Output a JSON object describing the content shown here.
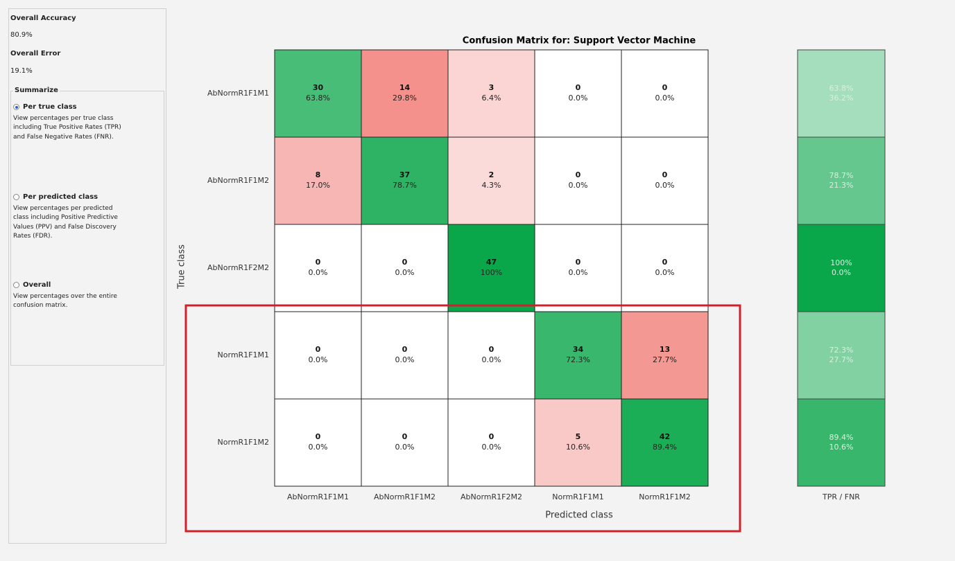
{
  "panel": {
    "accuracy_label": "Overall Accuracy",
    "accuracy": "80.9%",
    "error_label": "Overall Error",
    "error": "19.1%",
    "summarize_label": "Summarize",
    "options": [
      {
        "label": "Per true class",
        "selected": true,
        "description": [
          "View percentages per true class",
          "including True Positive Rates (TPR)",
          "and False Negative Rates (FNR)."
        ]
      },
      {
        "label": "Per predicted class",
        "selected": false,
        "description": [
          "View percentages per predicted",
          "class including Positive Predictive",
          "Values (PPV) and False Discovery",
          "Rates (FDR)."
        ]
      },
      {
        "label": "Overall",
        "selected": false,
        "description": [
          "View percentages over the entire",
          "confusion matrix."
        ]
      }
    ]
  },
  "matrix": {
    "title": "Confusion Matrix for: Support Vector Machine",
    "row_labels": [
      "AbNormR1F1M1",
      "AbNormR1F1M2",
      "AbNormR1F2M2",
      "NormR1F1M1",
      "NormR1F1M2"
    ],
    "col_labels": [
      "AbNormR1F1M1",
      "AbNormR1F1M2",
      "AbNormR1F2M2",
      "NormR1F1M1",
      "NormR1F1M2"
    ],
    "x_label": "Predicted class",
    "y_label": "True class",
    "cells": [
      [
        {
          "count": 30,
          "percent": "63.8%"
        },
        {
          "count": 14,
          "percent": "29.8%"
        },
        {
          "count": 3,
          "percent": "6.4%"
        },
        {
          "count": 0,
          "percent": "0.0%"
        },
        {
          "count": 0,
          "percent": "0.0%"
        }
      ],
      [
        {
          "count": 8,
          "percent": "17.0%"
        },
        {
          "count": 37,
          "percent": "78.7%"
        },
        {
          "count": 2,
          "percent": "4.3%"
        },
        {
          "count": 0,
          "percent": "0.0%"
        },
        {
          "count": 0,
          "percent": "0.0%"
        }
      ],
      [
        {
          "count": 0,
          "percent": "0.0%"
        },
        {
          "count": 0,
          "percent": "0.0%"
        },
        {
          "count": 47,
          "percent": "100%"
        },
        {
          "count": 0,
          "percent": "0.0%"
        },
        {
          "count": 0,
          "percent": "0.0%"
        }
      ],
      [
        {
          "count": 0,
          "percent": "0.0%"
        },
        {
          "count": 0,
          "percent": "0.0%"
        },
        {
          "count": 0,
          "percent": "0.0%"
        },
        {
          "count": 34,
          "percent": "72.3%"
        },
        {
          "count": 13,
          "percent": "27.7%"
        }
      ],
      [
        {
          "count": 0,
          "percent": "0.0%"
        },
        {
          "count": 0,
          "percent": "0.0%"
        },
        {
          "count": 0,
          "percent": "0.0%"
        },
        {
          "count": 5,
          "percent": "10.6%"
        },
        {
          "count": 42,
          "percent": "89.4%"
        }
      ]
    ],
    "summary_label": "TPR / FNR",
    "summary": [
      {
        "tpr": "63.8%",
        "fnr": "36.2%"
      },
      {
        "tpr": "78.7%",
        "fnr": "21.3%"
      },
      {
        "tpr": "100%",
        "fnr": "0.0%"
      },
      {
        "tpr": "72.3%",
        "fnr": "27.7%"
      },
      {
        "tpr": "89.4%",
        "fnr": "10.6%"
      }
    ]
  }
}
